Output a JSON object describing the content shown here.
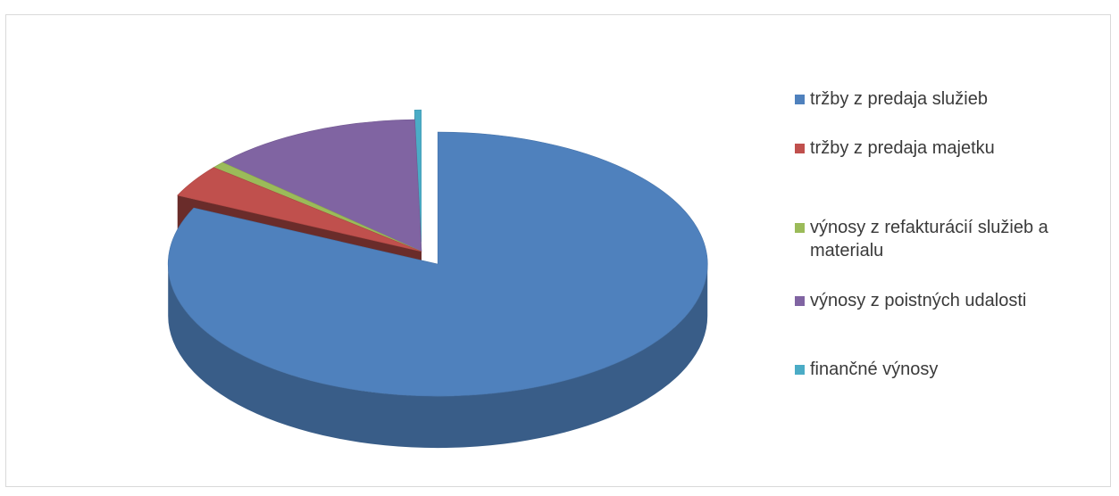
{
  "chart_data": {
    "type": "pie",
    "three_d": true,
    "legend_position": "right",
    "title": "",
    "series": [
      {
        "categories": [
          "tržby z predaja služieb",
          "tržby z predaja majetku",
          "výnosy z refakturácií služieb a materialu",
          "výnosy z poistných udalosti",
          "finančné výnosy"
        ],
        "values": [
          82.0,
          4.0,
          0.8,
          12.8,
          0.4
        ],
        "exploded": [
          true,
          false,
          false,
          false,
          true
        ]
      }
    ],
    "colors": [
      "#4f81bd",
      "#c0504d",
      "#9bbb59",
      "#8064a2",
      "#4bacc6"
    ]
  }
}
